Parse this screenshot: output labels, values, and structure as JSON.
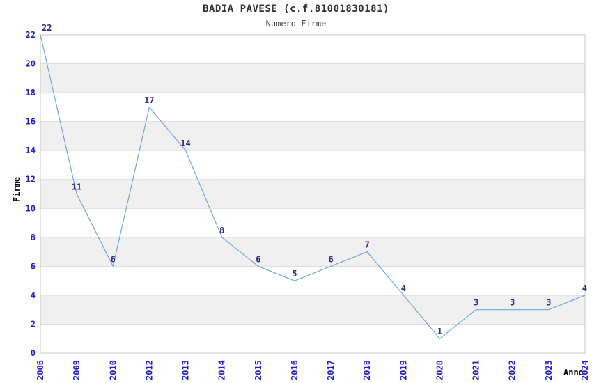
{
  "chart_data": {
    "type": "line",
    "title": "BADIA PAVESE (c.f.81001830181)",
    "subtitle": "Numero Firme",
    "xlabel": "Anno",
    "ylabel": "Firme",
    "categories": [
      "2006",
      "2009",
      "2010",
      "2012",
      "2013",
      "2014",
      "2015",
      "2016",
      "2017",
      "2018",
      "2019",
      "2020",
      "2021",
      "2022",
      "2023",
      "2024"
    ],
    "values": [
      22,
      11,
      6,
      17,
      14,
      8,
      6,
      5,
      6,
      7,
      4,
      1,
      3,
      3,
      3,
      4
    ],
    "ylim": [
      0,
      22
    ],
    "ytick_step": 2,
    "grid": "horizontal-bands",
    "legend": "none",
    "band_pattern": "alternating gray bands between even gridlines (gray on 2-4, 6-8, 10-12, 14-16, 18-20)",
    "colors": {
      "line": "#6EA6DF",
      "y_tick_label": "#2222CC",
      "x_tick_label": "#2222CC",
      "point_label": "#2E2E7E",
      "band": "#F0F0F0",
      "white_band": "#FFFFFF",
      "gridline": "#DCDCDC",
      "frame": "#C8C8C8",
      "title": "#333333",
      "subtitle": "#444444",
      "axis_label": "#000000"
    }
  }
}
